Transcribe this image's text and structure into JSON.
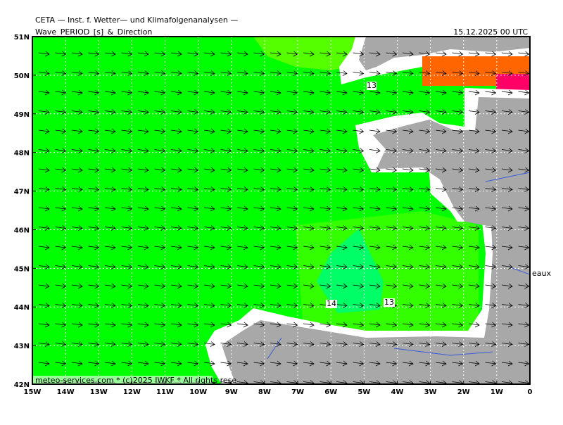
{
  "header": {
    "title": "CETA — Inst. f. Wetter— und Klimafolgenanalysen —",
    "subtitle": "Wave_PERIOD_[s]_&_Direction",
    "date": "15.12.2025 00 UTC"
  },
  "axes": {
    "longitudes": [
      "15W",
      "14W",
      "13W",
      "12W",
      "11W",
      "10W",
      "9W",
      "8W",
      "7W",
      "6W",
      "5W",
      "4W",
      "3W",
      "2W",
      "1W",
      "0"
    ],
    "latitudes": [
      "51N",
      "50N",
      "49N",
      "48N",
      "47N",
      "46N",
      "45N",
      "44N",
      "43N",
      "42N"
    ]
  },
  "contour_labels": [
    "13",
    "14",
    "13"
  ],
  "place_labels": [
    "eaux"
  ],
  "footer": "meteo-services.com * (c)2025 IWKF * All rights rese"
}
